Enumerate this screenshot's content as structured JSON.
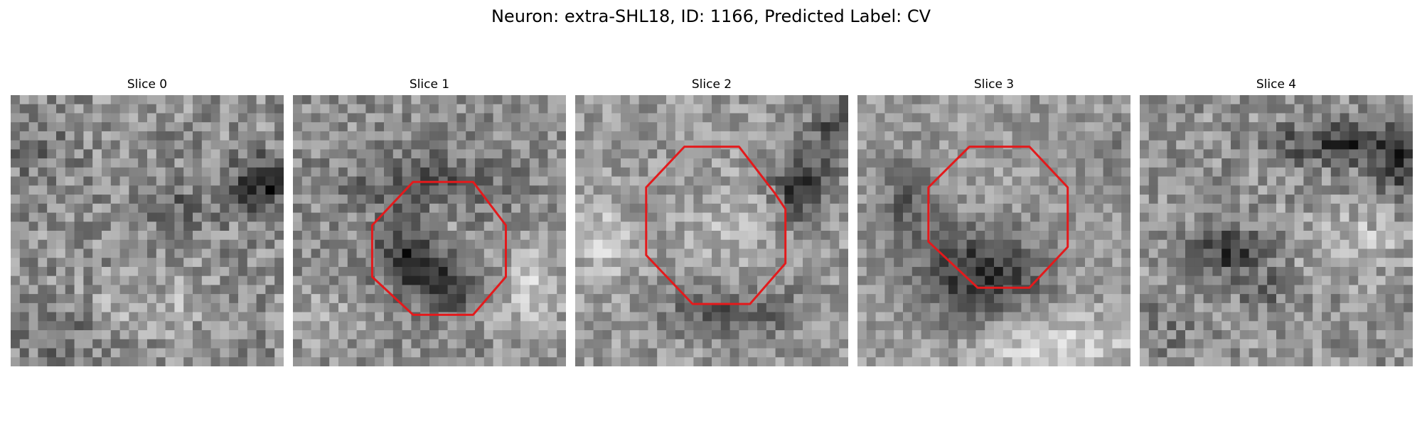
{
  "figure": {
    "title": "Neuron: extra-SHL18, ID: 1166, Predicted Label: CV",
    "contour_color": "#e31a1c"
  },
  "panels": [
    {
      "title": "Slice 0",
      "has_contour": false
    },
    {
      "title": "Slice 1",
      "has_contour": true
    },
    {
      "title": "Slice 2",
      "has_contour": true
    },
    {
      "title": "Slice 3",
      "has_contour": true
    },
    {
      "title": "Slice 4",
      "has_contour": false
    }
  ]
}
